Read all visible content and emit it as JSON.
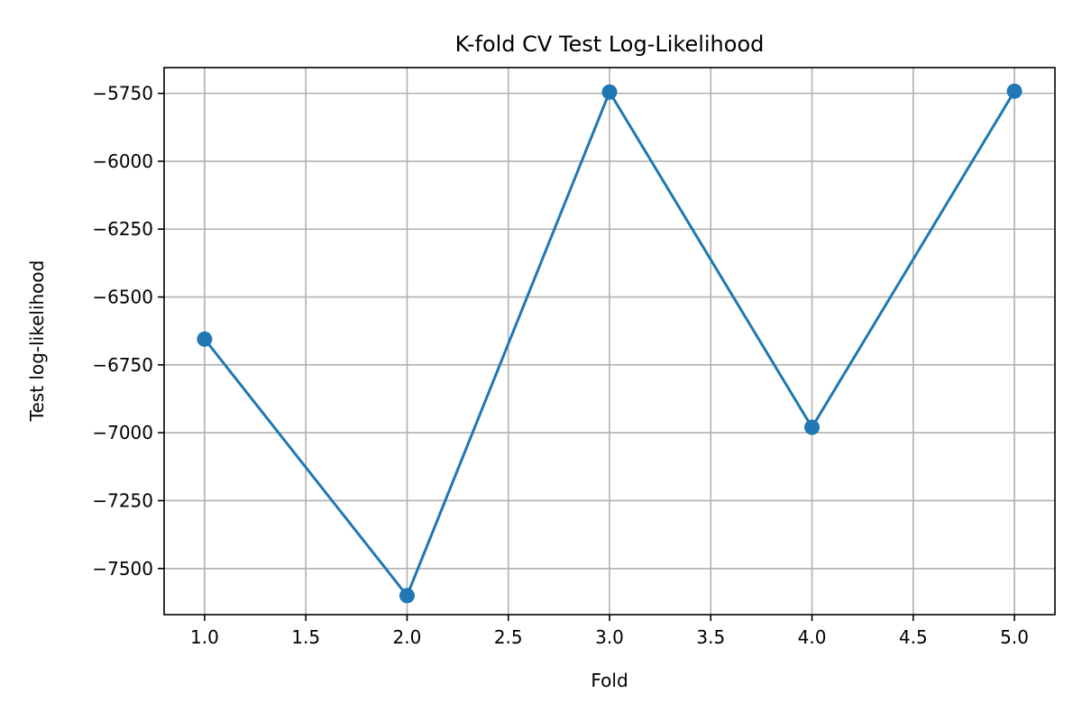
{
  "chart_data": {
    "type": "line",
    "title": "K-fold CV Test Log-Likelihood",
    "xlabel": "Fold",
    "ylabel": "Test log-likelihood",
    "xlim": [
      0.8,
      5.2
    ],
    "ylim": [
      -7670,
      -5655
    ],
    "x_ticks": [
      1.0,
      1.5,
      2.0,
      2.5,
      3.0,
      3.5,
      4.0,
      4.5,
      5.0
    ],
    "x_tick_labels": [
      "1.0",
      "1.5",
      "2.0",
      "2.5",
      "3.0",
      "3.5",
      "4.0",
      "4.5",
      "5.0"
    ],
    "y_ticks": [
      -5750,
      -6000,
      -6250,
      -6500,
      -6750,
      -7000,
      -7250,
      -7500
    ],
    "y_tick_labels": [
      "−5750",
      "−6000",
      "−6250",
      "−6500",
      "−6750",
      "−7000",
      "−7250",
      "−7500"
    ],
    "grid": true,
    "series": [
      {
        "x": [
          1,
          2,
          3,
          4,
          5
        ],
        "values": [
          -6655,
          -7600,
          -5745,
          -6980,
          -5742
        ],
        "color": "#1f77b4",
        "marker": "circle"
      }
    ]
  }
}
